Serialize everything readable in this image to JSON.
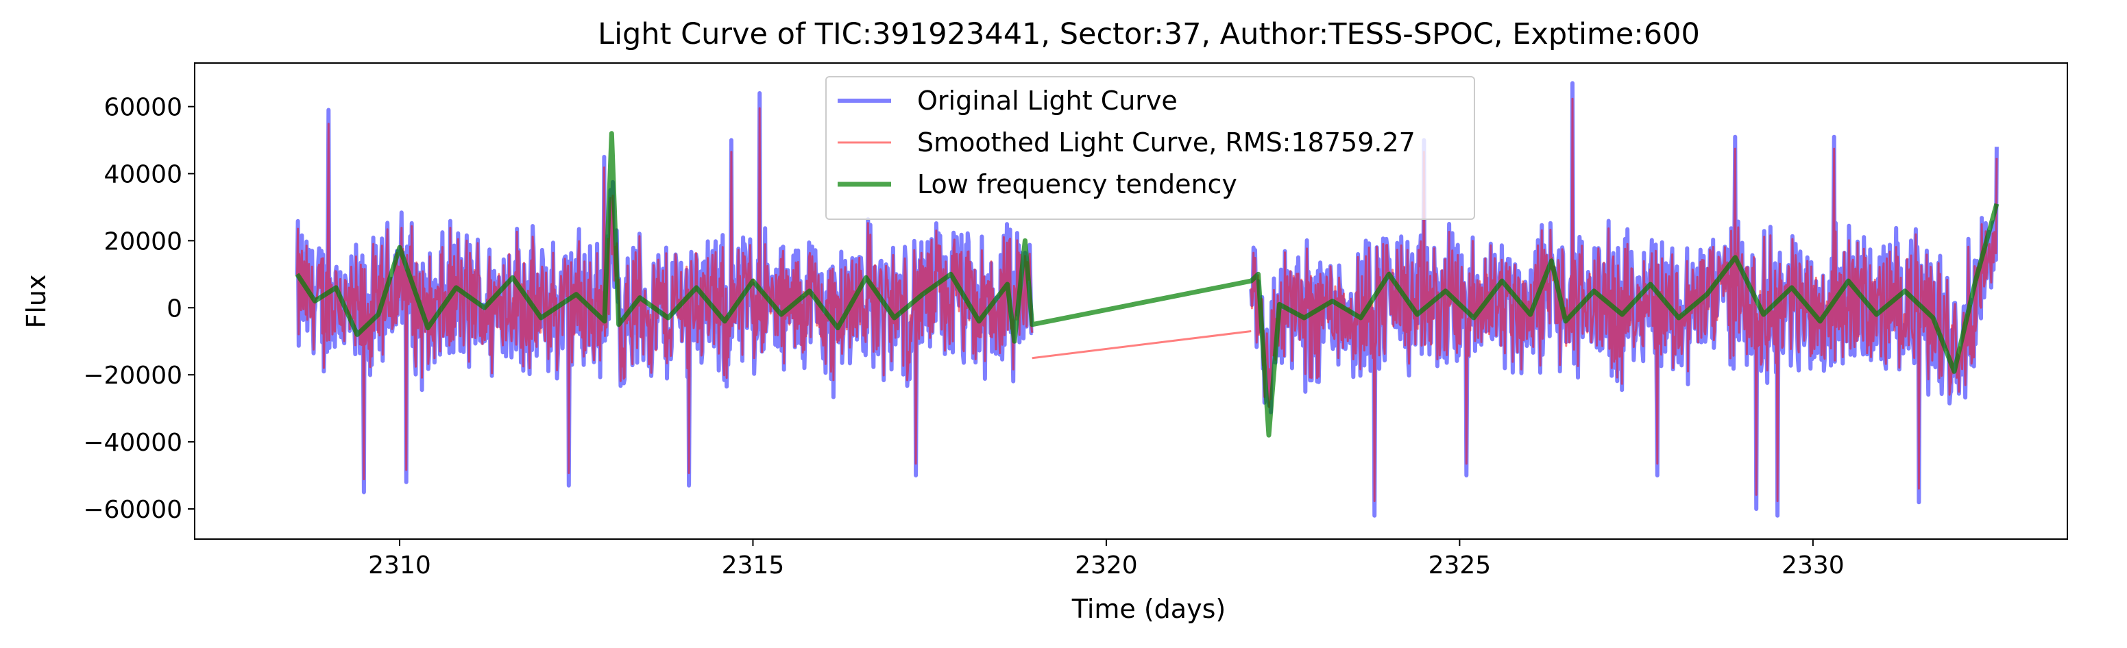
{
  "chart_data": {
    "type": "line",
    "title": "Light Curve of TIC:391923441, Sector:37, Author:TESS-SPOC, Exptime:600",
    "xlabel": "Time (days)",
    "ylabel": "Flux",
    "xlim": [
      2307.1,
      2333.6
    ],
    "ylim": [
      -69000,
      73000
    ],
    "grid": false,
    "legend_position": "upper center",
    "x_ticks": [
      2310,
      2315,
      2320,
      2325,
      2330
    ],
    "y_ticks": [
      -60000,
      -40000,
      -20000,
      0,
      20000,
      40000,
      60000
    ],
    "segments": [
      {
        "start": 2308.55,
        "end": 2318.95
      },
      {
        "start": 2322.05,
        "end": 2332.6
      }
    ],
    "series": [
      {
        "name": "Original Light Curve",
        "color": "#0000ff",
        "opacity": 0.5,
        "amplitude": 17500,
        "peaks": [
          [
            2309.0,
            59000
          ],
          [
            2309.5,
            -55000
          ],
          [
            2310.1,
            -52000
          ],
          [
            2312.4,
            -53000
          ],
          [
            2312.9,
            45000
          ],
          [
            2314.1,
            -53000
          ],
          [
            2314.7,
            50000
          ],
          [
            2315.1,
            64000
          ],
          [
            2317.3,
            -50000
          ],
          [
            2323.8,
            -62000
          ],
          [
            2324.5,
            50000
          ],
          [
            2325.1,
            -50000
          ],
          [
            2326.6,
            67000
          ],
          [
            2327.8,
            -50000
          ],
          [
            2328.9,
            51000
          ],
          [
            2329.2,
            -60000
          ],
          [
            2329.5,
            -62000
          ],
          [
            2330.3,
            51000
          ],
          [
            2331.5,
            -58000
          ],
          [
            2332.6,
            48000
          ]
        ]
      },
      {
        "name": "Smoothed Light Curve, RMS:18759.27",
        "color": "#ff0000",
        "opacity": 0.5,
        "amplitude": 15500,
        "gap_line": [
          [
            2318.95,
            -15000
          ],
          [
            2322.05,
            -7000
          ]
        ]
      },
      {
        "name": "Low frequency tendency",
        "color": "#007f00",
        "opacity": 0.7,
        "points": [
          [
            2308.55,
            10000
          ],
          [
            2308.8,
            2000
          ],
          [
            2309.1,
            6000
          ],
          [
            2309.4,
            -8000
          ],
          [
            2309.7,
            -2000
          ],
          [
            2310.0,
            18000
          ],
          [
            2310.4,
            -6000
          ],
          [
            2310.8,
            6000
          ],
          [
            2311.2,
            0
          ],
          [
            2311.6,
            9000
          ],
          [
            2312.0,
            -3000
          ],
          [
            2312.5,
            4000
          ],
          [
            2312.9,
            -4000
          ],
          [
            2313.0,
            52000
          ],
          [
            2313.1,
            -5000
          ],
          [
            2313.4,
            3000
          ],
          [
            2313.8,
            -3000
          ],
          [
            2314.2,
            6000
          ],
          [
            2314.6,
            -4000
          ],
          [
            2315.0,
            8000
          ],
          [
            2315.4,
            -2000
          ],
          [
            2315.8,
            5000
          ],
          [
            2316.2,
            -6000
          ],
          [
            2316.6,
            9000
          ],
          [
            2317.0,
            -3000
          ],
          [
            2317.4,
            4000
          ],
          [
            2317.8,
            10000
          ],
          [
            2318.2,
            -4000
          ],
          [
            2318.6,
            7000
          ],
          [
            2318.7,
            -10000
          ],
          [
            2318.85,
            20000
          ],
          [
            2318.95,
            -5000
          ],
          [
            2322.05,
            8000
          ],
          [
            2322.15,
            10000
          ],
          [
            2322.3,
            -38000
          ],
          [
            2322.45,
            1000
          ],
          [
            2322.8,
            -3000
          ],
          [
            2323.2,
            2000
          ],
          [
            2323.6,
            -3000
          ],
          [
            2324.0,
            10000
          ],
          [
            2324.4,
            -2000
          ],
          [
            2324.8,
            5000
          ],
          [
            2325.2,
            -3000
          ],
          [
            2325.6,
            8000
          ],
          [
            2326.0,
            -2000
          ],
          [
            2326.3,
            14000
          ],
          [
            2326.5,
            -4000
          ],
          [
            2326.9,
            5000
          ],
          [
            2327.3,
            -2000
          ],
          [
            2327.7,
            7000
          ],
          [
            2328.1,
            -3000
          ],
          [
            2328.5,
            4000
          ],
          [
            2328.9,
            15000
          ],
          [
            2329.3,
            -2000
          ],
          [
            2329.7,
            6000
          ],
          [
            2330.1,
            -4000
          ],
          [
            2330.5,
            8000
          ],
          [
            2330.9,
            -2000
          ],
          [
            2331.3,
            5000
          ],
          [
            2331.7,
            -3000
          ],
          [
            2332.0,
            -19000
          ],
          [
            2332.3,
            8000
          ],
          [
            2332.6,
            31000
          ]
        ]
      }
    ]
  }
}
